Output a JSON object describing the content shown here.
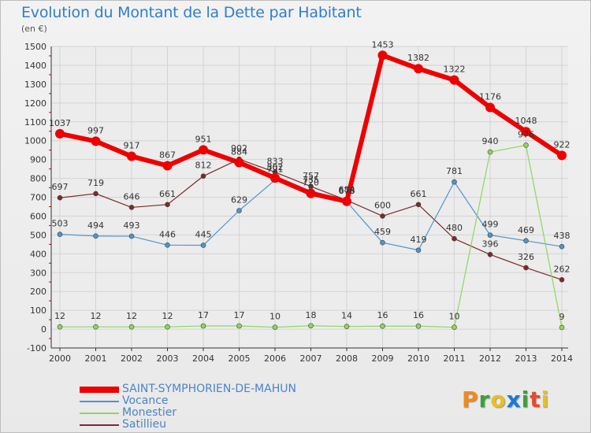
{
  "header": {
    "title": "Evolution du Montant de la Dette par Habitant",
    "subtitle": "(en €)"
  },
  "logo": {
    "text": "Proxiti",
    "colors": [
      "#f08a1c",
      "#3ca03c",
      "#e8c020",
      "#1e78d2",
      "#3ca03c",
      "#e84a2a",
      "#e8c020"
    ]
  },
  "chart_data": {
    "type": "line",
    "title": "Evolution du Montant de la Dette par Habitant",
    "ylabel": "(en €)",
    "xlabel": "",
    "x": [
      "2000",
      "2001",
      "2002",
      "2003",
      "2004",
      "2005",
      "2006",
      "2007",
      "2008",
      "2009",
      "2010",
      "2011",
      "2012",
      "2013",
      "2014"
    ],
    "ylim": [
      -100,
      1500
    ],
    "yticks": [
      -100,
      0,
      100,
      200,
      300,
      400,
      500,
      600,
      700,
      800,
      900,
      1000,
      1100,
      1200,
      1300,
      1400,
      1500
    ],
    "grid": true,
    "legend_position": "bottom-left",
    "series": [
      {
        "name": "SAINT-SYMPHORIEN-DE-MAHUN",
        "color": "#ee0000",
        "values": [
          1037,
          997,
          917,
          867,
          951,
          884,
          802,
          720,
          678,
          1453,
          1382,
          1322,
          1176,
          1048,
          922
        ]
      },
      {
        "name": "Vocance",
        "color": "#4f94cd",
        "values": [
          503,
          494,
          493,
          446,
          445,
          629,
          791,
          735,
          676,
          459,
          419,
          781,
          499,
          469,
          438
        ]
      },
      {
        "name": "Monestier",
        "color": "#8fd65a",
        "values": [
          12,
          12,
          12,
          12,
          17,
          17,
          10,
          18,
          14,
          16,
          16,
          10,
          940,
          976,
          9
        ]
      },
      {
        "name": "Satillieu",
        "color": "#7a2b2b",
        "values": [
          697,
          719,
          646,
          661,
          812,
          902,
          833,
          757,
          684,
          600,
          661,
          480,
          396,
          326,
          262
        ]
      }
    ]
  }
}
